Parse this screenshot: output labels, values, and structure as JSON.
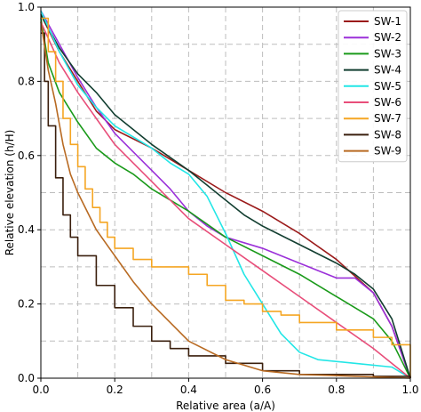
{
  "chart_data": {
    "type": "line",
    "xlabel": "Relative area (a/A)",
    "ylabel": "Relative elevation (h/H)",
    "xlim": [
      0,
      1
    ],
    "ylim": [
      0,
      1
    ],
    "xticks": [
      "0.0",
      "0.2",
      "0.4",
      "0.6",
      "0.8",
      "1.0"
    ],
    "yticks": [
      "0.0",
      "0.2",
      "0.4",
      "0.6",
      "0.8",
      "1.0"
    ],
    "grid": true,
    "legend_position": "top-right",
    "series": [
      {
        "name": "SW-1",
        "color": "#9b1b1b",
        "stepped": false,
        "points": [
          [
            0,
            0.98
          ],
          [
            0.05,
            0.88
          ],
          [
            0.1,
            0.8
          ],
          [
            0.15,
            0.72
          ],
          [
            0.2,
            0.67
          ],
          [
            0.3,
            0.62
          ],
          [
            0.4,
            0.56
          ],
          [
            0.5,
            0.5
          ],
          [
            0.6,
            0.45
          ],
          [
            0.7,
            0.39
          ],
          [
            0.8,
            0.32
          ],
          [
            0.9,
            0.23
          ],
          [
            0.95,
            0.14
          ],
          [
            1.0,
            0.0
          ]
        ]
      },
      {
        "name": "SW-2",
        "color": "#9b30d9",
        "stepped": false,
        "points": [
          [
            0,
            0.99
          ],
          [
            0.05,
            0.9
          ],
          [
            0.1,
            0.81
          ],
          [
            0.15,
            0.73
          ],
          [
            0.2,
            0.66
          ],
          [
            0.25,
            0.61
          ],
          [
            0.3,
            0.56
          ],
          [
            0.35,
            0.51
          ],
          [
            0.4,
            0.45
          ],
          [
            0.45,
            0.41
          ],
          [
            0.5,
            0.38
          ],
          [
            0.6,
            0.35
          ],
          [
            0.7,
            0.31
          ],
          [
            0.8,
            0.27
          ],
          [
            0.85,
            0.27
          ],
          [
            0.9,
            0.23
          ],
          [
            0.95,
            0.14
          ],
          [
            1.0,
            0.0
          ]
        ]
      },
      {
        "name": "SW-3",
        "color": "#1a9a1a",
        "stepped": false,
        "points": [
          [
            0,
            0.97
          ],
          [
            0.02,
            0.85
          ],
          [
            0.05,
            0.77
          ],
          [
            0.1,
            0.69
          ],
          [
            0.15,
            0.62
          ],
          [
            0.2,
            0.58
          ],
          [
            0.25,
            0.55
          ],
          [
            0.3,
            0.51
          ],
          [
            0.35,
            0.48
          ],
          [
            0.4,
            0.45
          ],
          [
            0.5,
            0.38
          ],
          [
            0.6,
            0.33
          ],
          [
            0.7,
            0.28
          ],
          [
            0.8,
            0.22
          ],
          [
            0.9,
            0.16
          ],
          [
            0.95,
            0.1
          ],
          [
            1.0,
            0.0
          ]
        ]
      },
      {
        "name": "SW-4",
        "color": "#123e30",
        "stepped": false,
        "points": [
          [
            0,
            0.98
          ],
          [
            0.05,
            0.89
          ],
          [
            0.1,
            0.82
          ],
          [
            0.15,
            0.77
          ],
          [
            0.2,
            0.71
          ],
          [
            0.3,
            0.63
          ],
          [
            0.4,
            0.56
          ],
          [
            0.45,
            0.52
          ],
          [
            0.5,
            0.48
          ],
          [
            0.55,
            0.44
          ],
          [
            0.6,
            0.41
          ],
          [
            0.7,
            0.36
          ],
          [
            0.8,
            0.31
          ],
          [
            0.85,
            0.28
          ],
          [
            0.9,
            0.24
          ],
          [
            0.95,
            0.16
          ],
          [
            1.0,
            0.0
          ]
        ]
      },
      {
        "name": "SW-5",
        "color": "#22e6e6",
        "stepped": false,
        "points": [
          [
            0,
            0.99
          ],
          [
            0.05,
            0.88
          ],
          [
            0.1,
            0.79
          ],
          [
            0.15,
            0.73
          ],
          [
            0.2,
            0.68
          ],
          [
            0.25,
            0.65
          ],
          [
            0.3,
            0.62
          ],
          [
            0.35,
            0.58
          ],
          [
            0.4,
            0.55
          ],
          [
            0.45,
            0.49
          ],
          [
            0.5,
            0.39
          ],
          [
            0.55,
            0.28
          ],
          [
            0.6,
            0.2
          ],
          [
            0.65,
            0.12
          ],
          [
            0.7,
            0.07
          ],
          [
            0.75,
            0.05
          ],
          [
            0.85,
            0.04
          ],
          [
            0.95,
            0.03
          ],
          [
            1.0,
            0.0
          ]
        ]
      },
      {
        "name": "SW-6",
        "color": "#e84e7a",
        "stepped": false,
        "points": [
          [
            0,
            0.96
          ],
          [
            0.05,
            0.85
          ],
          [
            0.1,
            0.77
          ],
          [
            0.15,
            0.7
          ],
          [
            0.2,
            0.63
          ],
          [
            0.25,
            0.58
          ],
          [
            0.3,
            0.53
          ],
          [
            0.35,
            0.48
          ],
          [
            0.4,
            0.43
          ],
          [
            0.5,
            0.36
          ],
          [
            0.6,
            0.29
          ],
          [
            0.7,
            0.22
          ],
          [
            0.8,
            0.15
          ],
          [
            0.9,
            0.08
          ],
          [
            0.95,
            0.04
          ],
          [
            1.0,
            0.0
          ]
        ]
      },
      {
        "name": "SW-7",
        "color": "#f5a623",
        "stepped": true,
        "points": [
          [
            0,
            0.97
          ],
          [
            0.02,
            0.88
          ],
          [
            0.04,
            0.8
          ],
          [
            0.06,
            0.7
          ],
          [
            0.08,
            0.63
          ],
          [
            0.1,
            0.57
          ],
          [
            0.12,
            0.51
          ],
          [
            0.14,
            0.46
          ],
          [
            0.16,
            0.42
          ],
          [
            0.18,
            0.38
          ],
          [
            0.2,
            0.35
          ],
          [
            0.25,
            0.32
          ],
          [
            0.3,
            0.3
          ],
          [
            0.4,
            0.28
          ],
          [
            0.45,
            0.25
          ],
          [
            0.5,
            0.21
          ],
          [
            0.55,
            0.2
          ],
          [
            0.6,
            0.18
          ],
          [
            0.65,
            0.17
          ],
          [
            0.7,
            0.15
          ],
          [
            0.8,
            0.13
          ],
          [
            0.9,
            0.11
          ],
          [
            0.95,
            0.09
          ],
          [
            1.0,
            0.0
          ]
        ]
      },
      {
        "name": "SW-8",
        "color": "#3a1f0d",
        "stepped": true,
        "points": [
          [
            0,
            0.93
          ],
          [
            0.01,
            0.8
          ],
          [
            0.02,
            0.68
          ],
          [
            0.04,
            0.54
          ],
          [
            0.06,
            0.44
          ],
          [
            0.08,
            0.38
          ],
          [
            0.1,
            0.33
          ],
          [
            0.15,
            0.25
          ],
          [
            0.2,
            0.19
          ],
          [
            0.25,
            0.14
          ],
          [
            0.3,
            0.1
          ],
          [
            0.35,
            0.08
          ],
          [
            0.4,
            0.06
          ],
          [
            0.5,
            0.04
          ],
          [
            0.6,
            0.02
          ],
          [
            0.7,
            0.01
          ],
          [
            0.9,
            0.005
          ],
          [
            1.0,
            0.0
          ]
        ]
      },
      {
        "name": "SW-9",
        "color": "#b86a22",
        "stepped": false,
        "points": [
          [
            0,
            0.96
          ],
          [
            0.02,
            0.83
          ],
          [
            0.04,
            0.74
          ],
          [
            0.06,
            0.63
          ],
          [
            0.08,
            0.55
          ],
          [
            0.1,
            0.5
          ],
          [
            0.15,
            0.4
          ],
          [
            0.2,
            0.33
          ],
          [
            0.25,
            0.26
          ],
          [
            0.3,
            0.2
          ],
          [
            0.4,
            0.1
          ],
          [
            0.5,
            0.05
          ],
          [
            0.6,
            0.02
          ],
          [
            0.7,
            0.01
          ],
          [
            0.8,
            0.007
          ],
          [
            1.0,
            0.0
          ]
        ]
      }
    ]
  }
}
